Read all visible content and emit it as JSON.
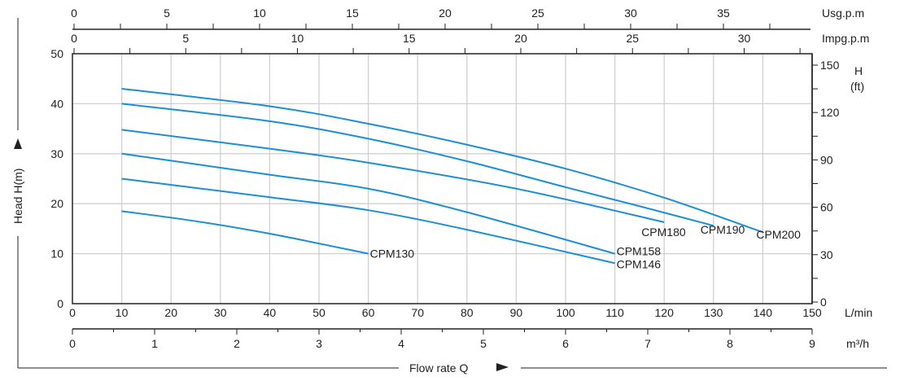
{
  "chart_data": {
    "type": "line",
    "title": "",
    "xlabel": "Flow rate Q",
    "ylabel": "Head H(m)",
    "xlim": [
      0,
      150
    ],
    "ylim": [
      0,
      50
    ],
    "x_unit": "L/min",
    "x_ticks": [
      0,
      10,
      20,
      30,
      40,
      50,
      60,
      70,
      80,
      90,
      100,
      110,
      120,
      130,
      140,
      150
    ],
    "y_ticks": [
      0,
      10,
      20,
      30,
      40,
      50
    ],
    "right_axis": {
      "label_top": "H",
      "label_unit": "(ft)",
      "ticks": [
        0,
        30,
        60,
        90,
        120,
        150
      ]
    },
    "m3h_axis": {
      "unit": "m³/h",
      "ticks": [
        0,
        1,
        2,
        3,
        4,
        5,
        6,
        7,
        8,
        9
      ]
    },
    "usgpm_axis": {
      "unit": "Usg.p.m",
      "ticks": [
        0,
        5,
        10,
        15,
        20,
        25,
        30,
        35
      ]
    },
    "impgpm_axis": {
      "unit": "Impg.p.m",
      "ticks": [
        0,
        5,
        10,
        15,
        20,
        25,
        30
      ]
    },
    "grid": true,
    "color": "#1a8fd6",
    "series": [
      {
        "name": "CPM200",
        "x": [
          10,
          40,
          60,
          80,
          100,
          120,
          140
        ],
        "y": [
          43,
          39.5,
          36,
          31.8,
          27,
          21.2,
          14.3
        ]
      },
      {
        "name": "CPM190",
        "x": [
          10,
          40,
          60,
          80,
          100,
          115,
          130
        ],
        "y": [
          40,
          36.5,
          33,
          28.5,
          23.3,
          19.5,
          15.6
        ]
      },
      {
        "name": "CPM180",
        "x": [
          10,
          40,
          60,
          90,
          120
        ],
        "y": [
          34.8,
          31,
          28.2,
          23,
          16.3
        ]
      },
      {
        "name": "CPM158",
        "x": [
          10,
          40,
          60,
          80,
          110
        ],
        "y": [
          30,
          25.8,
          23,
          18.3,
          10
        ]
      },
      {
        "name": "CPM146",
        "x": [
          10,
          40,
          60,
          80,
          110
        ],
        "y": [
          25,
          21.3,
          18.7,
          14.8,
          8.1
        ]
      },
      {
        "name": "CPM130",
        "x": [
          10,
          25,
          40,
          60
        ],
        "y": [
          18.5,
          16.5,
          14,
          10
        ]
      }
    ]
  }
}
